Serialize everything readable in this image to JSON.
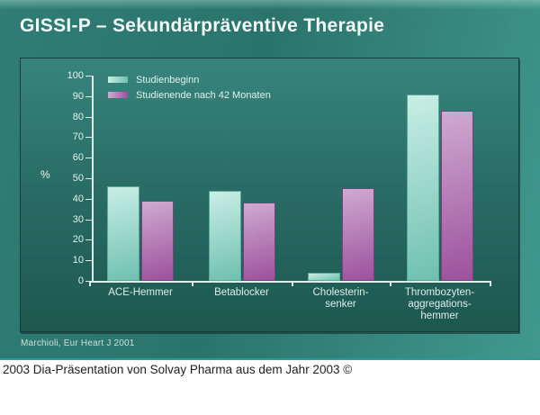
{
  "title": "GISSI-P – Sekundärpräventive Therapie",
  "source_note": "Marchioli, Eur Heart J 2001",
  "caption": "2003 Dia-Präsentation von Solvay Pharma aus dem Jahr 2003 ©",
  "colors": {
    "slide_bg": "#2f7d74",
    "panel_top": "#38857d",
    "panel_bottom": "#1d5750",
    "axis": "#dceee9",
    "title_text": "#f2faf8",
    "caption_divider": "#2f9b8e"
  },
  "chart_data": {
    "type": "bar",
    "title": "",
    "categories": [
      "ACE-Hemmer",
      "Betablocker",
      "Cholesterin-\nsenker",
      "Thrombozyten-\naggregations-\nhemmer"
    ],
    "series": [
      {
        "name": "Studienbeginn",
        "values": [
          46,
          44,
          4,
          91
        ],
        "color_top": "#c9eee5",
        "color_bottom": "#6fc0b0",
        "border": "#58ab9b"
      },
      {
        "name": "Studienende nach 42 Monaten",
        "values": [
          39,
          38,
          45,
          83
        ],
        "color_top": "#cfaad1",
        "color_bottom": "#9c519c",
        "border": "#7c4080"
      }
    ],
    "xlabel": "",
    "ylabel": "%",
    "ylim": [
      0,
      100
    ],
    "ytick_step": 10,
    "grid": false,
    "legend_position": "top-left"
  }
}
